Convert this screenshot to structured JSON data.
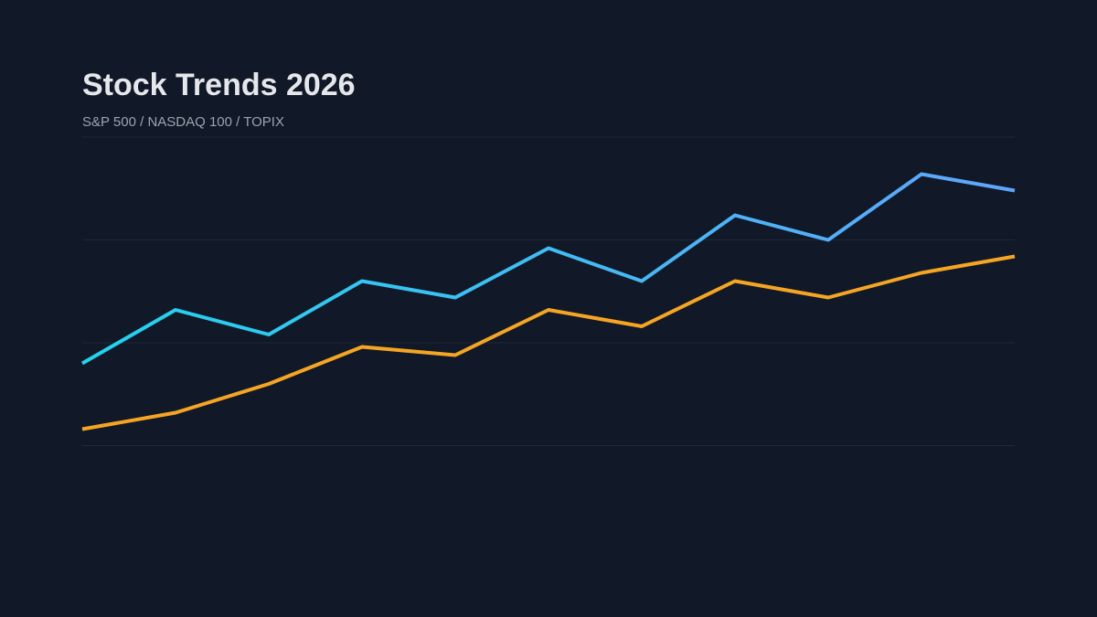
{
  "chart_data": {
    "type": "line",
    "title": "Stock Trends 2026",
    "subtitle": "S&P 500 / NASDAQ 100 / TOPIX",
    "xlabel": "",
    "ylabel": "",
    "ylim": [
      0,
      100
    ],
    "grid": true,
    "legend": "none",
    "series": [
      {
        "values": [
          45,
          58,
          52,
          65,
          61,
          73,
          65,
          81,
          75,
          91,
          87
        ],
        "color_start": "#22D3EE",
        "color_end": "#60A5FA"
      },
      {
        "values": [
          29,
          33,
          40,
          49,
          47,
          58,
          54,
          65,
          61,
          67,
          71
        ],
        "color": "#F5A524"
      }
    ]
  },
  "colors": {
    "background": "#111827",
    "gridline": "#1F2937",
    "title": "#E5E7EB",
    "subtitle": "#9CA3AF"
  }
}
